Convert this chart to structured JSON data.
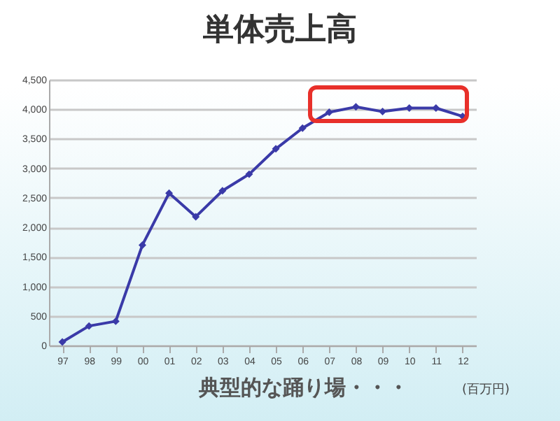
{
  "chart_data": {
    "type": "line",
    "title": "単体売上高",
    "categories": [
      "97",
      "98",
      "99",
      "00",
      "01",
      "02",
      "03",
      "04",
      "05",
      "06",
      "07",
      "08",
      "09",
      "10",
      "11",
      "12"
    ],
    "series": [
      {
        "color": "#3a3aa8",
        "values": [
          60,
          330,
          410,
          1700,
          2580,
          2180,
          2620,
          2900,
          3330,
          3680,
          3950,
          4040,
          3960,
          4020,
          4020,
          3880
        ]
      }
    ],
    "ylim": [
      0,
      4500
    ],
    "yticks": [
      0,
      500,
      {
        "value": 1000,
        "label": "1,000"
      },
      {
        "value": 1500,
        "label": "1,500"
      },
      {
        "value": 2000,
        "label": "2,000"
      },
      {
        "value": 2500,
        "label": "2,500"
      },
      {
        "value": 3000,
        "label": "3,000"
      },
      {
        "value": 3500,
        "label": "3,500"
      },
      {
        "value": 4000,
        "label": "4,000"
      },
      {
        "value": 4500,
        "label": "4,500"
      }
    ],
    "grid": "y",
    "marker": "diamond",
    "legend": false,
    "annotations": [
      "典型的な踊り場・・・",
      "(百万円)"
    ]
  }
}
